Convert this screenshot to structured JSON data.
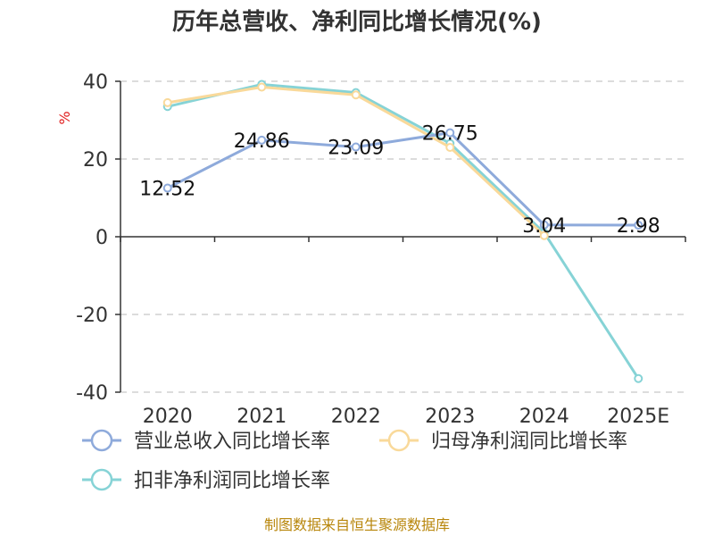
{
  "chart_data": {
    "type": "line",
    "title": "历年总营收、净利同比增长情况(%)",
    "unit": "%",
    "categories": [
      "2020",
      "2021",
      "2022",
      "2023",
      "2024",
      "2025E"
    ],
    "ylim": [
      -40,
      40
    ],
    "yticks": [
      40,
      20,
      0,
      -20,
      -40
    ],
    "grid": true,
    "legend_position": "bottom-left",
    "series": [
      {
        "name": "营业总收入同比增长率",
        "color": "#8eaadb",
        "values": [
          12.52,
          24.86,
          23.09,
          26.75,
          3.04,
          2.98
        ],
        "labels": [
          "12.52",
          "24.86",
          "23.09",
          "26.75",
          "3.04",
          "2.98"
        ]
      },
      {
        "name": "归母净利润同比增长率",
        "color": "#f9d99a",
        "values": [
          34.5,
          38.5,
          36.5,
          23.0,
          0.3,
          null
        ]
      },
      {
        "name": "扣非净利润同比增长率",
        "color": "#86d3d6",
        "values": [
          33.5,
          39.2,
          37.1,
          24.0,
          1.0,
          -36.5
        ]
      }
    ]
  },
  "source": "制图数据来自恒生聚源数据库"
}
